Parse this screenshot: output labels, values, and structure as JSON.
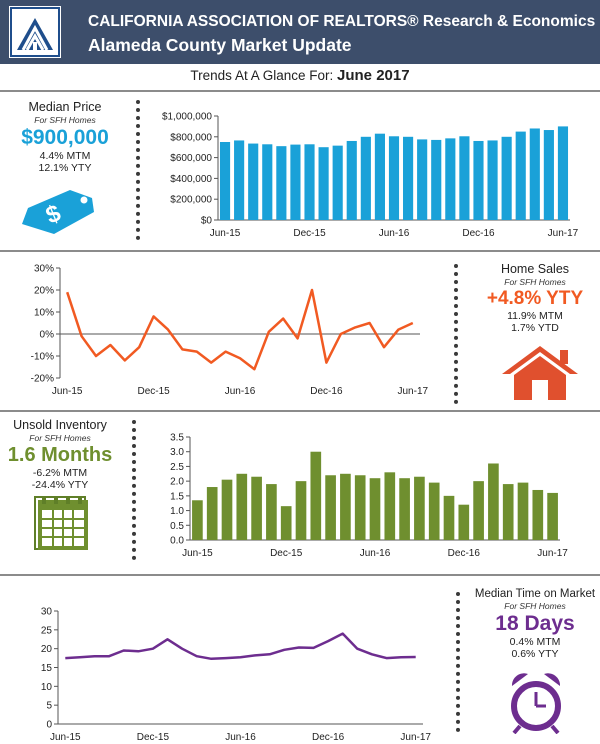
{
  "header": {
    "title": "CALIFORNIA ASSOCIATION OF REALTORS® Research & Economics",
    "subtitle": "Alameda County Market Update"
  },
  "trends": {
    "prefix": "Trends At A Glance For:",
    "period": "June 2017"
  },
  "median_price": {
    "title": "Median Price",
    "subtitle": "For SFH Homes",
    "value": "$900,000",
    "mtm": "4.4% MTM",
    "ytd": "12.1% YTY",
    "color": "#1aa1d8",
    "icon": "price-tag-icon"
  },
  "home_sales": {
    "title": "Home Sales",
    "subtitle": "For SFH Homes",
    "value": "+4.8% YTY",
    "mtm": "11.9% MTM",
    "ytd": "1.7% YTD",
    "color": "#f15a22",
    "icon": "house-icon"
  },
  "unsold_inventory": {
    "title": "Unsold Inventory",
    "subtitle": "For SFH Homes",
    "value": "1.6 Months",
    "mtm": "-6.2% MTM",
    "ytd": "-24.4% YTY",
    "color": "#6f8f2f",
    "icon": "calendar-icon"
  },
  "time_on_market": {
    "title": "Median Time on Market",
    "subtitle": "For SFH Homes",
    "value": "18 Days",
    "mtm": "0.4% MTM",
    "ytd": "0.6% YTY",
    "color": "#6d2d8f",
    "icon": "alarm-clock-icon"
  },
  "chart_data": [
    {
      "type": "bar",
      "title": "",
      "x_labels": [
        "Jun-15",
        "Dec-15",
        "Jun-16",
        "Dec-16",
        "Jun-17"
      ],
      "values": [
        750000,
        765000,
        735000,
        728000,
        710000,
        725000,
        728000,
        700000,
        715000,
        760000,
        800000,
        830000,
        805000,
        800000,
        775000,
        770000,
        785000,
        805000,
        760000,
        765000,
        800000,
        850000,
        880000,
        865000,
        900000
      ],
      "y_ticks": [
        "$0",
        "$200,000",
        "$400,000",
        "$600,000",
        "$800,000",
        "$1,000,000"
      ],
      "ylim": [
        0,
        1000000
      ],
      "color": "#1aa1d8"
    },
    {
      "type": "line",
      "title": "",
      "x_labels": [
        "Jun-15",
        "Dec-15",
        "Jun-16",
        "Dec-16",
        "Jun-17"
      ],
      "values": [
        19,
        -1,
        -10,
        -5,
        -12,
        -6,
        8,
        2,
        -7,
        -8,
        -13,
        -8,
        -11,
        -16,
        1,
        7,
        -2,
        20,
        -13,
        0,
        3,
        5,
        -6,
        2,
        5
      ],
      "y_ticks": [
        "-20%",
        "-10%",
        "0%",
        "10%",
        "20%",
        "30%"
      ],
      "ylim": [
        -20,
        30
      ],
      "color": "#f15a22"
    },
    {
      "type": "bar",
      "title": "",
      "x_labels": [
        "Jun-15",
        "Dec-15",
        "Jun-16",
        "Dec-16",
        "Jun-17"
      ],
      "values": [
        1.35,
        1.8,
        2.05,
        2.25,
        2.15,
        1.9,
        1.15,
        2.0,
        3.0,
        2.2,
        2.25,
        2.2,
        2.1,
        2.3,
        2.1,
        2.15,
        1.95,
        1.5,
        1.2,
        2.0,
        2.6,
        1.9,
        1.95,
        1.7,
        1.6
      ],
      "y_ticks": [
        "0.0",
        "0.5",
        "1.0",
        "1.5",
        "2.0",
        "2.5",
        "3.0",
        "3.5"
      ],
      "ylim": [
        0,
        3.5
      ],
      "color": "#6f8f2f"
    },
    {
      "type": "line",
      "title": "",
      "x_labels": [
        "Jun-15",
        "Dec-15",
        "Jun-16",
        "Dec-16",
        "Jun-17"
      ],
      "values": [
        17.5,
        17.7,
        18.0,
        18.0,
        19.5,
        19.3,
        20.0,
        22.5,
        20.0,
        18.0,
        17.3,
        17.5,
        17.7,
        18.2,
        18.5,
        19.7,
        20.3,
        20.2,
        22.0,
        24.0,
        20.0,
        18.5,
        17.5,
        17.7,
        17.8
      ],
      "y_ticks": [
        "0",
        "5",
        "10",
        "15",
        "20",
        "25",
        "30"
      ],
      "ylim": [
        0,
        30
      ],
      "color": "#6d2d8f"
    }
  ]
}
